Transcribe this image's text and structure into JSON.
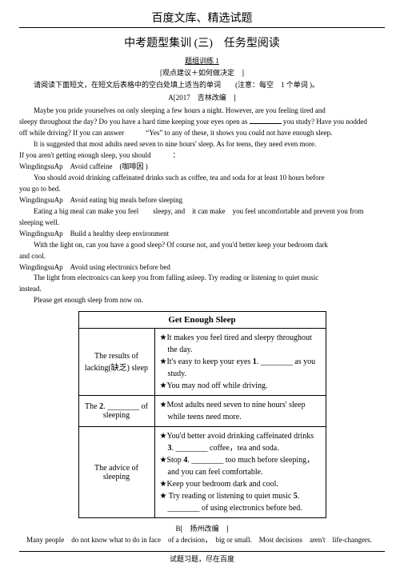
{
  "header": "百度文库、精选试题",
  "title": "中考题型集训 (三)　任务型阅读",
  "subtitle": "题组训练 1",
  "bracket": "[观点建议＋如何做决定　]",
  "instruction": "请阅读下面短文，在短文后表格中的空白处填上适当的单词　　(注意：每空　1 个单词 )。",
  "meta": "A[2017　吉林改编　]",
  "body": {
    "p1": "Maybe you pride yourselves on only sleeping a few hours a night. However, are you feeling tired and",
    "p2a": "sleepy throughout the day? Do you have a hard time keeping your eyes open as ",
    "p2b": " you study? Have you nodded",
    "p3a": "off while driving? If you can answer　　　",
    "p3b": "“Yes”",
    "p3c": " to any of these, it shows you could not have enough sleep.",
    "p4": "It is suggested that most adults need seven to nine hours' sleep. As for teens, they need even more.",
    "p5": "If you aren't getting enough sleep, you should　　　：",
    "h1a": "WingdingsuAp　Avoid caffeine　(咖啡因 )",
    "p6": "You should avoid drinking caffeinated drinks such as coffee, tea and soda for at least 10 hours before",
    "p7": "you go to bed.",
    "h2": "WingdingsuAp　Avoid eating big meals before sleeping",
    "p8": "Eating a big meal can make you feel　　sleepy, and　it can make　you feel uncomfortable and prevent you from",
    "p9": "sleeping well.",
    "h3": "WingdingsuAp　Build a healthy sleep environment",
    "p10": "With the light on, can you have a good sleep? Of course not, and you'd better keep your bedroom dark",
    "p11": "and cool.",
    "h4": "WingdingsuAp　Avoid using electronics before bed",
    "p12": "The light from electronics can keep you from falling asleep. Try reading or listening to quiet music",
    "p13": "instead.",
    "p14": "Please get enough sleep from now on."
  },
  "table": {
    "caption": "Get Enough Sleep",
    "rows": [
      {
        "left": "The results of lacking(缺乏) sleep",
        "items": [
          "★It makes you feel tired and sleepy throughout the day.",
          "★It's easy to keep your eyes <b>1</b>. ________ as you study.",
          "★You may nod off while driving."
        ]
      },
      {
        "left": "The <b>2</b>. ________ of sleeping",
        "items": [
          "★Most adults need seven to nine hours' sleep while teens need more."
        ]
      },
      {
        "left": "The advice of sleeping",
        "items": [
          "★You'd better avoid drinking caffeinated drinks <b>3</b>. ________ coffee，tea and soda.",
          "★Stop <b>4</b>. ________ too much before sleeping， and you can feel comfortable.",
          "★Keep your bedroom dark and cool.",
          "★ Try reading or listening to quiet music <b>5</b>. ________ of using electronics before bed."
        ]
      }
    ]
  },
  "metaB": "B[　扬州改编　]",
  "footerSentence": "Many people　do not know what to do in face　of a decision，　big or small.　Most decisions　aren't　life-changers.",
  "footer": "试题习题，尽在百度"
}
